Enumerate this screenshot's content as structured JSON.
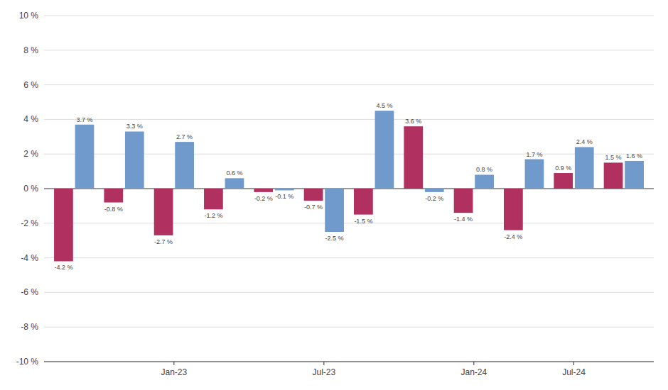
{
  "chart_data": {
    "type": "bar",
    "categories": [
      null,
      null,
      "Jan-23",
      null,
      null,
      "Jul-23",
      null,
      null,
      "Jan-24",
      null,
      "Jul-24",
      null
    ],
    "series": [
      {
        "color": "#b03060",
        "values": [
          -4.2,
          -0.8,
          -2.7,
          -1.2,
          -0.2,
          -0.7,
          -1.5,
          3.6,
          -1.4,
          -2.4,
          0.9,
          1.5
        ],
        "value_labels": [
          "-4.2 %",
          "-0.8 %",
          "-2.7 %",
          "-1.2 %",
          "-0.2 %",
          "-0.7 %",
          "-1.5 %",
          "3.6 %",
          "-1.4 %",
          "-2.4 %",
          "0.9 %",
          "1.5 %"
        ]
      },
      {
        "color": "#7099cc",
        "values": [
          3.7,
          3.3,
          2.7,
          0.6,
          -0.1,
          -2.5,
          4.5,
          -0.2,
          0.8,
          1.7,
          2.4,
          1.6
        ],
        "value_labels": [
          "3.7 %",
          "3.3 %",
          "2.7 %",
          "0.6 %",
          "-0.1 %",
          "-2.5 %",
          "4.5 %",
          "-0.2 %",
          "0.8 %",
          "1.7 %",
          "2.4 %",
          "1.6 %"
        ]
      }
    ],
    "ylim": [
      -10,
      10
    ],
    "yticks": [
      {
        "value": -10,
        "label": "-10 %"
      },
      {
        "value": -8,
        "label": "-8 %"
      },
      {
        "value": -6,
        "label": "-6 %"
      },
      {
        "value": -4,
        "label": "-4 %"
      },
      {
        "value": -2,
        "label": "-2 %"
      },
      {
        "value": 0,
        "label": "0 %"
      },
      {
        "value": 2,
        "label": "2 %"
      },
      {
        "value": 4,
        "label": "4 %"
      },
      {
        "value": 6,
        "label": "6 %"
      },
      {
        "value": 8,
        "label": "8 %"
      },
      {
        "value": 10,
        "label": "10 %"
      }
    ],
    "grid": true,
    "data_labels": true
  }
}
